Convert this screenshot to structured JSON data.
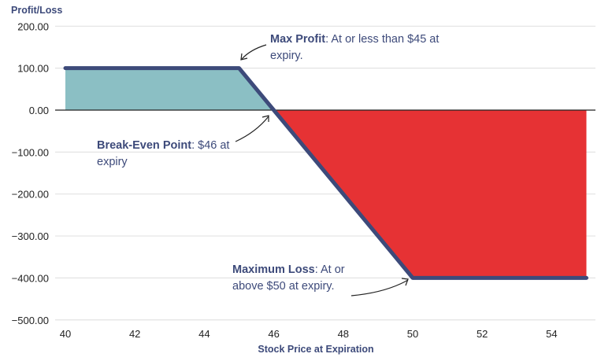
{
  "chart_data": {
    "type": "area",
    "title": "",
    "xlabel": "Stock Price at Expiration",
    "ylabel": "Profit/Loss",
    "xlim": [
      40,
      55
    ],
    "ylim": [
      -500,
      200
    ],
    "x_ticks": [
      40,
      42,
      44,
      46,
      48,
      50,
      52,
      54
    ],
    "y_ticks": [
      200,
      100,
      0,
      -100,
      -200,
      -300,
      -400,
      -500
    ],
    "y_tick_labels": [
      "200.00",
      "100.00",
      "0.00",
      "−100.00",
      "−200.00",
      "−300.00",
      "−400.00",
      "−500.00"
    ],
    "grid": "horizontal",
    "series": [
      {
        "x": [
          40,
          45,
          46,
          50,
          55
        ],
        "y": [
          100,
          100,
          0,
          -400,
          -400
        ]
      }
    ],
    "colors": {
      "line": "#3d4a7a",
      "profit_fill": "#8bbfc4",
      "loss_fill": "#e63234",
      "grid": "#e3e3e3",
      "zero_line": "#222222"
    },
    "annotations": [
      {
        "bold": "Max Profit",
        "text": ": At or less than $45 at expiry.",
        "x": 45,
        "y": 100
      },
      {
        "bold": "Break-Even Point",
        "text": ": $46 at expiry",
        "x": 46,
        "y": 0
      },
      {
        "bold": "Maximum Loss",
        "text": ": At or above $50 at expiry.",
        "x": 50,
        "y": -400
      }
    ]
  }
}
